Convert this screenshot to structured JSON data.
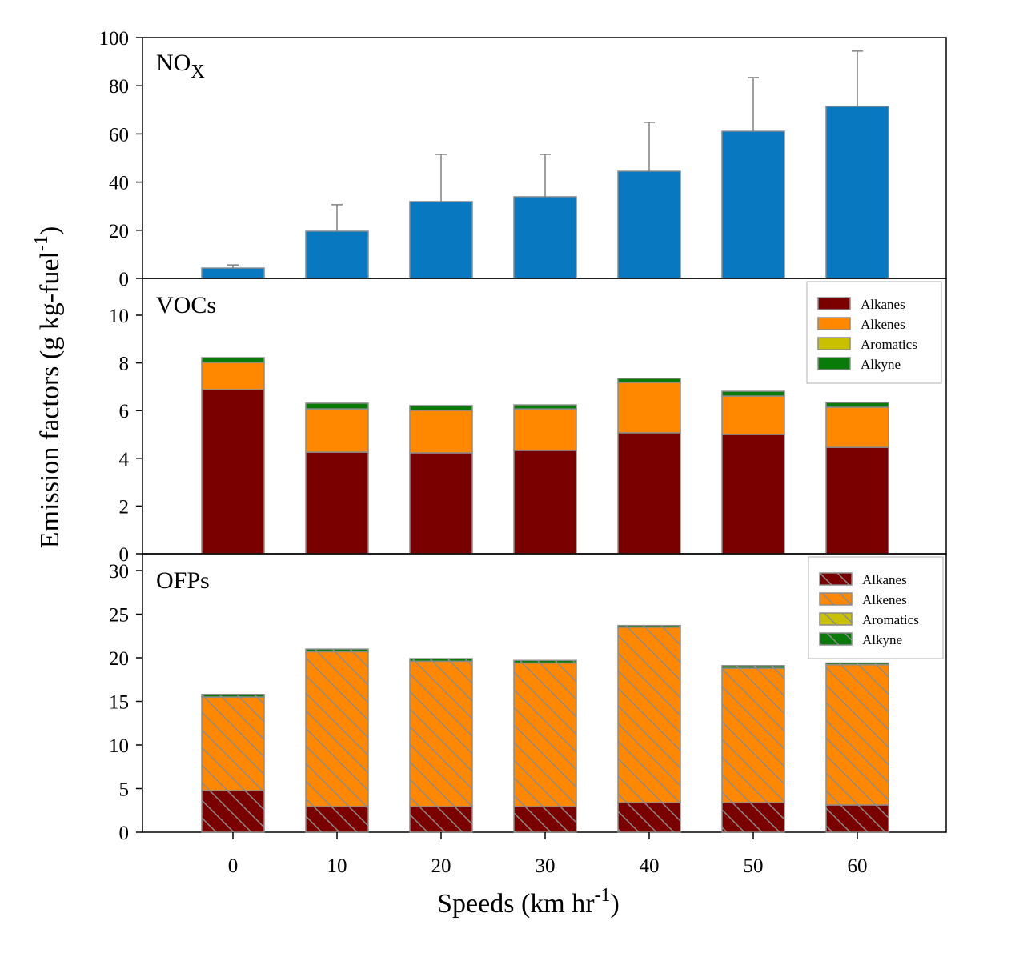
{
  "chart_data": {
    "type": "bar",
    "x": [
      0,
      10,
      20,
      30,
      40,
      50,
      60
    ],
    "categories": [
      "0",
      "10",
      "20",
      "30",
      "40",
      "50",
      "60"
    ],
    "xlabel": "Speeds (km hr",
    "xlabel_sup": "-1",
    "xlabel_end": ")",
    "ylabel": "Emission factors (g kg-fuel",
    "ylabel_sup": "-1",
    "ylabel_end": ")",
    "panels": [
      {
        "id": "nox",
        "title": "NO",
        "title_sub": "X",
        "type": "bar",
        "ylim": [
          0,
          100
        ],
        "yticks": [
          0,
          20,
          40,
          60,
          80,
          100
        ],
        "color": "#0878c0",
        "values": [
          4.3,
          19.6,
          31.9,
          33.9,
          44.5,
          61.1,
          71.4
        ],
        "error_upper": [
          1.3,
          11.0,
          19.6,
          17.6,
          20.3,
          22.3,
          23.0
        ],
        "legend": null
      },
      {
        "id": "vocs",
        "title": "VOCs",
        "type": "stacked-bar",
        "ylim": [
          0,
          11
        ],
        "yticks": [
          0,
          2,
          4,
          6,
          8,
          10
        ],
        "hatched": false,
        "legend_position": "top-right",
        "series": [
          {
            "name": "Alkanes",
            "color": "#7a0000",
            "values": [
              6.88,
              4.26,
              4.23,
              4.33,
              5.07,
              5.0,
              4.46
            ]
          },
          {
            "name": "Alkenes",
            "color": "#ff8800",
            "values": [
              1.14,
              1.81,
              1.78,
              1.74,
              2.11,
              1.61,
              1.68
            ]
          },
          {
            "name": "Aromatics",
            "color": "#c8c000",
            "values": [
              0.0,
              0.0,
              0.0,
              0.0,
              0.0,
              0.0,
              0.0
            ]
          },
          {
            "name": "Alkyne",
            "color": "#0a7a0a",
            "values": [
              0.2,
              0.24,
              0.2,
              0.17,
              0.17,
              0.2,
              0.2
            ]
          }
        ]
      },
      {
        "id": "ofps",
        "title": "OFPs",
        "type": "stacked-bar",
        "ylim": [
          0,
          31
        ],
        "yticks": [
          0,
          5,
          10,
          15,
          20,
          25,
          30
        ],
        "hatched": true,
        "legend_position": "top-right",
        "series": [
          {
            "name": "Alkanes",
            "color": "#7a0000",
            "values": [
              4.77,
              2.94,
              2.94,
              2.94,
              3.39,
              3.39,
              3.12
            ]
          },
          {
            "name": "Alkenes",
            "color": "#ff8800",
            "values": [
              10.73,
              17.76,
              16.66,
              16.46,
              20.11,
              15.41,
              16.08
            ]
          },
          {
            "name": "Aromatics",
            "color": "#c8c000",
            "values": [
              0.0,
              0.0,
              0.0,
              0.0,
              0.0,
              0.0,
              0.0
            ]
          },
          {
            "name": "Alkyne",
            "color": "#0a7a0a",
            "values": [
              0.3,
              0.3,
              0.3,
              0.3,
              0.2,
              0.3,
              0.2
            ]
          }
        ]
      }
    ]
  }
}
